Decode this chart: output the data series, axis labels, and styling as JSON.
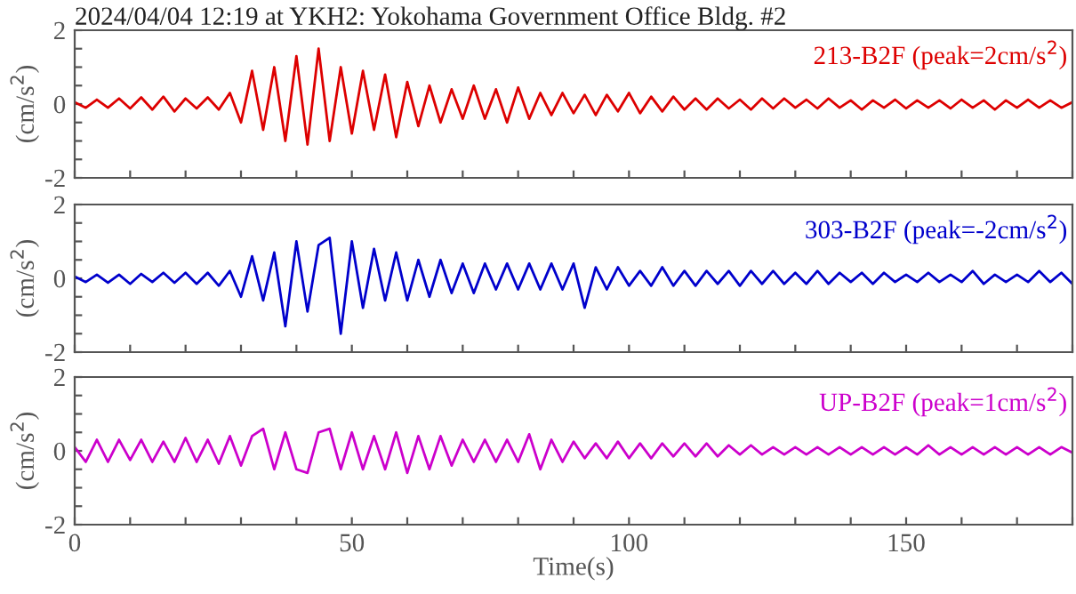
{
  "chart_data": [
    {
      "type": "line",
      "title": "2024/04/04 12:19 at YKH2: Yokohama Government Office Bldg. #2",
      "ylabel": "(cm/s$^{2}$)",
      "tick_labels": "y",
      "grid": false,
      "legend": false,
      "line_style": "solid",
      "marker": "none",
      "xlim": [
        0,
        180
      ],
      "xticks": [
        {
          "value": 0,
          "label": null
        },
        {
          "value": 10,
          "label": null
        },
        {
          "value": 20,
          "label": null
        },
        {
          "value": 30,
          "label": null
        },
        {
          "value": 40,
          "label": null
        },
        {
          "value": 50,
          "label": null
        },
        {
          "value": 60,
          "label": null
        },
        {
          "value": 70,
          "label": null
        },
        {
          "value": 80,
          "label": null
        },
        {
          "value": 90,
          "label": null
        },
        {
          "value": 100,
          "label": null
        },
        {
          "value": 110,
          "label": null
        },
        {
          "value": 120,
          "label": null
        },
        {
          "value": 130,
          "label": null
        },
        {
          "value": 140,
          "label": null
        },
        {
          "value": 150,
          "label": null
        },
        {
          "value": 160,
          "label": null
        },
        {
          "value": 170,
          "label": null
        },
        {
          "value": 180,
          "label": null
        }
      ],
      "ylim": [
        -2,
        2
      ],
      "yticks": [
        -2,
        {
          "value": -1.5,
          "label": null
        },
        {
          "value": -1,
          "label": null
        },
        {
          "value": -0.5,
          "label": null
        },
        0,
        {
          "value": 0.5,
          "label": null
        },
        {
          "value": 1,
          "label": null
        },
        {
          "value": 1.5,
          "label": null
        },
        2
      ],
      "x": [
        0,
        2,
        4,
        6,
        8,
        10,
        12,
        14,
        16,
        18,
        20,
        22,
        24,
        26,
        28,
        30,
        32,
        34,
        36,
        38,
        40,
        42,
        44,
        46,
        48,
        50,
        52,
        54,
        56,
        58,
        60,
        62,
        64,
        66,
        68,
        70,
        72,
        74,
        76,
        78,
        80,
        82,
        84,
        86,
        88,
        90,
        92,
        94,
        96,
        98,
        100,
        102,
        104,
        106,
        108,
        110,
        112,
        114,
        116,
        118,
        120,
        122,
        124,
        126,
        128,
        130,
        132,
        134,
        136,
        138,
        140,
        142,
        144,
        146,
        148,
        150,
        152,
        154,
        156,
        158,
        160,
        162,
        164,
        166,
        168,
        170,
        172,
        174,
        176,
        178,
        180
      ],
      "series": [
        {
          "name": "213-B2F (peak=2cm/s$^{2}$)",
          "color": "#dd0000",
          "values": [
            0.05,
            -0.1,
            0.12,
            -0.1,
            0.15,
            -0.12,
            0.18,
            -0.15,
            0.2,
            -0.2,
            0.15,
            -0.12,
            0.18,
            -0.15,
            0.3,
            -0.5,
            0.9,
            -0.7,
            1.0,
            -1.0,
            1.3,
            -1.1,
            1.5,
            -1.0,
            1.0,
            -0.8,
            0.9,
            -0.7,
            0.8,
            -0.9,
            0.6,
            -0.6,
            0.5,
            -0.5,
            0.4,
            -0.4,
            0.5,
            -0.4,
            0.4,
            -0.5,
            0.45,
            -0.4,
            0.3,
            -0.3,
            0.3,
            -0.25,
            0.25,
            -0.3,
            0.25,
            -0.2,
            0.3,
            -0.25,
            0.2,
            -0.2,
            0.2,
            -0.15,
            0.15,
            -0.15,
            0.15,
            -0.12,
            0.12,
            -0.15,
            0.15,
            -0.12,
            0.15,
            -0.1,
            0.12,
            -0.12,
            0.15,
            -0.1,
            0.1,
            -0.15,
            0.1,
            -0.1,
            0.12,
            -0.12,
            0.1,
            -0.1,
            0.1,
            -0.12,
            0.12,
            -0.1,
            0.1,
            -0.15,
            0.1,
            -0.1,
            0.12,
            -0.1,
            0.1,
            -0.1,
            0.05
          ]
        }
      ]
    },
    {
      "type": "line",
      "ylabel": "(cm/s$^{2}$)",
      "tick_labels": "y",
      "grid": false,
      "legend": false,
      "line_style": "solid",
      "marker": "none",
      "xlim": [
        0,
        180
      ],
      "xticks": [
        {
          "value": 0,
          "label": null
        },
        {
          "value": 10,
          "label": null
        },
        {
          "value": 20,
          "label": null
        },
        {
          "value": 30,
          "label": null
        },
        {
          "value": 40,
          "label": null
        },
        {
          "value": 50,
          "label": null
        },
        {
          "value": 60,
          "label": null
        },
        {
          "value": 70,
          "label": null
        },
        {
          "value": 80,
          "label": null
        },
        {
          "value": 90,
          "label": null
        },
        {
          "value": 100,
          "label": null
        },
        {
          "value": 110,
          "label": null
        },
        {
          "value": 120,
          "label": null
        },
        {
          "value": 130,
          "label": null
        },
        {
          "value": 140,
          "label": null
        },
        {
          "value": 150,
          "label": null
        },
        {
          "value": 160,
          "label": null
        },
        {
          "value": 170,
          "label": null
        },
        {
          "value": 180,
          "label": null
        }
      ],
      "ylim": [
        -2,
        2
      ],
      "yticks": [
        -2,
        {
          "value": -1.5,
          "label": null
        },
        {
          "value": -1,
          "label": null
        },
        {
          "value": -0.5,
          "label": null
        },
        0,
        {
          "value": 0.5,
          "label": null
        },
        {
          "value": 1,
          "label": null
        },
        {
          "value": 1.5,
          "label": null
        },
        2
      ],
      "x": [
        0,
        2,
        4,
        6,
        8,
        10,
        12,
        14,
        16,
        18,
        20,
        22,
        24,
        26,
        28,
        30,
        32,
        34,
        36,
        38,
        40,
        42,
        44,
        46,
        48,
        50,
        52,
        54,
        56,
        58,
        60,
        62,
        64,
        66,
        68,
        70,
        72,
        74,
        76,
        78,
        80,
        82,
        84,
        86,
        88,
        90,
        92,
        94,
        96,
        98,
        100,
        102,
        104,
        106,
        108,
        110,
        112,
        114,
        116,
        118,
        120,
        122,
        124,
        126,
        128,
        130,
        132,
        134,
        136,
        138,
        140,
        142,
        144,
        146,
        148,
        150,
        152,
        154,
        156,
        158,
        160,
        162,
        164,
        166,
        168,
        170,
        172,
        174,
        176,
        178,
        180
      ],
      "series": [
        {
          "name": "303-B2F (peak=-2cm/s$^{2}$)",
          "color": "#0000cc",
          "values": [
            0.05,
            -0.1,
            0.1,
            -0.12,
            0.1,
            -0.15,
            0.12,
            -0.1,
            0.15,
            -0.12,
            0.15,
            -0.15,
            0.15,
            -0.2,
            0.2,
            -0.5,
            0.6,
            -0.6,
            0.7,
            -1.3,
            1.0,
            -0.9,
            0.9,
            1.1,
            -1.5,
            1.0,
            -0.8,
            0.8,
            -0.6,
            0.7,
            -0.6,
            0.5,
            -0.5,
            0.5,
            -0.4,
            0.4,
            -0.4,
            0.4,
            -0.3,
            0.4,
            -0.3,
            0.4,
            -0.3,
            0.4,
            -0.3,
            0.4,
            -0.8,
            0.3,
            -0.3,
            0.3,
            -0.2,
            0.2,
            -0.2,
            0.3,
            -0.2,
            0.2,
            -0.2,
            0.2,
            -0.15,
            0.2,
            -0.2,
            0.2,
            -0.15,
            0.2,
            -0.15,
            0.15,
            -0.15,
            0.2,
            -0.15,
            0.15,
            -0.1,
            0.15,
            -0.15,
            0.15,
            -0.1,
            0.1,
            -0.1,
            0.15,
            -0.1,
            0.1,
            -0.1,
            0.2,
            -0.15,
            0.1,
            -0.1,
            0.1,
            -0.1,
            0.2,
            -0.1,
            0.15,
            -0.15
          ]
        }
      ]
    },
    {
      "type": "line",
      "xlabel": "Time(s)",
      "ylabel": "(cm/s$^{2}$)",
      "grid": false,
      "legend": false,
      "line_style": "solid",
      "marker": "none",
      "xlim": [
        0,
        180
      ],
      "xticks": [
        0,
        {
          "value": 10,
          "label": null
        },
        {
          "value": 20,
          "label": null
        },
        {
          "value": 30,
          "label": null
        },
        {
          "value": 40,
          "label": null
        },
        50,
        {
          "value": 60,
          "label": null
        },
        {
          "value": 70,
          "label": null
        },
        {
          "value": 80,
          "label": null
        },
        {
          "value": 90,
          "label": null
        },
        100,
        {
          "value": 110,
          "label": null
        },
        {
          "value": 120,
          "label": null
        },
        {
          "value": 130,
          "label": null
        },
        {
          "value": 140,
          "label": null
        },
        150,
        {
          "value": 160,
          "label": null
        },
        {
          "value": 170,
          "label": null
        },
        {
          "value": 180,
          "label": null
        }
      ],
      "ylim": [
        -2,
        2
      ],
      "yticks": [
        -2,
        {
          "value": -1.5,
          "label": null
        },
        {
          "value": -1,
          "label": null
        },
        {
          "value": -0.5,
          "label": null
        },
        0,
        {
          "value": 0.5,
          "label": null
        },
        {
          "value": 1,
          "label": null
        },
        {
          "value": 1.5,
          "label": null
        },
        2
      ],
      "x": [
        0,
        2,
        4,
        6,
        8,
        10,
        12,
        14,
        16,
        18,
        20,
        22,
        24,
        26,
        28,
        30,
        32,
        34,
        36,
        38,
        40,
        42,
        44,
        46,
        48,
        50,
        52,
        54,
        56,
        58,
        60,
        62,
        64,
        66,
        68,
        70,
        72,
        74,
        76,
        78,
        80,
        82,
        84,
        86,
        88,
        90,
        92,
        94,
        96,
        98,
        100,
        102,
        104,
        106,
        108,
        110,
        112,
        114,
        116,
        118,
        120,
        122,
        124,
        126,
        128,
        130,
        132,
        134,
        136,
        138,
        140,
        142,
        144,
        146,
        148,
        150,
        152,
        154,
        156,
        158,
        160,
        162,
        164,
        166,
        168,
        170,
        172,
        174,
        176,
        178,
        180
      ],
      "series": [
        {
          "name": "UP-B2F (peak=1cm/s$^{2}$)",
          "color": "#cc00cc",
          "values": [
            0.1,
            -0.3,
            0.3,
            -0.3,
            0.3,
            -0.25,
            0.3,
            -0.3,
            0.25,
            -0.3,
            0.35,
            -0.3,
            0.3,
            -0.35,
            0.4,
            -0.4,
            0.4,
            0.6,
            -0.5,
            0.5,
            -0.5,
            -0.6,
            0.5,
            0.6,
            -0.5,
            0.5,
            -0.5,
            0.4,
            -0.5,
            0.5,
            -0.6,
            0.4,
            -0.5,
            0.4,
            -0.4,
            0.3,
            -0.3,
            0.3,
            -0.3,
            0.3,
            -0.3,
            0.45,
            -0.5,
            0.3,
            -0.3,
            0.25,
            -0.2,
            0.2,
            -0.2,
            0.25,
            -0.2,
            0.2,
            -0.2,
            0.2,
            -0.15,
            0.2,
            -0.15,
            0.2,
            -0.15,
            0.15,
            -0.1,
            0.15,
            -0.1,
            0.1,
            -0.1,
            0.1,
            -0.1,
            0.1,
            -0.1,
            0.1,
            -0.1,
            0.1,
            -0.1,
            0.1,
            -0.1,
            0.1,
            -0.1,
            0.15,
            -0.1,
            0.1,
            -0.1,
            0.1,
            -0.1,
            0.1,
            -0.1,
            0.1,
            -0.1,
            0.1,
            -0.1,
            0.1,
            -0.05
          ]
        }
      ]
    }
  ]
}
